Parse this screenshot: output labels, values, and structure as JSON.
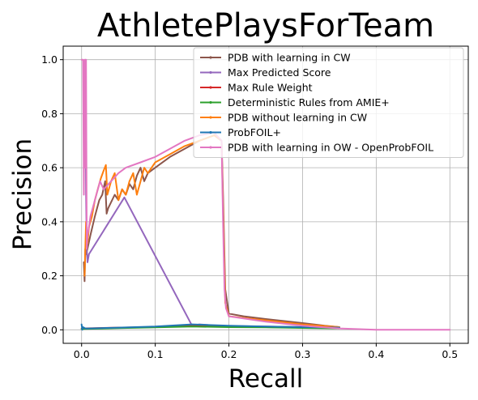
{
  "chart_data": {
    "type": "line",
    "title": "AthletePlaysForTeam",
    "xlabel": "Recall",
    "ylabel": "Precision",
    "xlim": [
      -0.025,
      0.525
    ],
    "ylim": [
      -0.05,
      1.05
    ],
    "xticks": [
      0.0,
      0.1,
      0.2,
      0.3,
      0.4,
      0.5
    ],
    "xtick_labels": [
      "0.0",
      "0.1",
      "0.2",
      "0.3",
      "0.4",
      "0.5"
    ],
    "yticks": [
      0.0,
      0.2,
      0.4,
      0.6,
      0.8,
      1.0
    ],
    "ytick_labels": [
      "0.0",
      "0.2",
      "0.4",
      "0.6",
      "0.8",
      "1.0"
    ],
    "grid": true,
    "legend_position": "top-right",
    "series": [
      {
        "name": "PDB with learning in CW",
        "color": "#8c564b",
        "x": [
          0.003,
          0.004,
          0.005,
          0.006,
          0.008,
          0.012,
          0.018,
          0.024,
          0.028,
          0.032,
          0.034,
          0.036,
          0.045,
          0.05,
          0.055,
          0.06,
          0.065,
          0.07,
          0.075,
          0.08,
          0.085,
          0.09,
          0.1,
          0.12,
          0.14,
          0.16,
          0.18,
          0.19,
          0.192,
          0.195,
          0.2,
          0.22,
          0.25,
          0.3,
          0.33,
          0.35
        ],
        "y": [
          0.25,
          0.18,
          0.3,
          0.28,
          0.3,
          0.35,
          0.42,
          0.48,
          0.5,
          0.55,
          0.43,
          0.45,
          0.5,
          0.48,
          0.52,
          0.5,
          0.54,
          0.52,
          0.57,
          0.6,
          0.55,
          0.58,
          0.6,
          0.64,
          0.67,
          0.7,
          0.72,
          0.7,
          0.5,
          0.15,
          0.06,
          0.05,
          0.04,
          0.025,
          0.015,
          0.01
        ]
      },
      {
        "name": "Max Predicted Score",
        "color": "#9467bd",
        "x": [
          0.005,
          0.006,
          0.007,
          0.008,
          0.01,
          0.058,
          0.15,
          0.16,
          0.17,
          0.18,
          0.19,
          0.2,
          0.25,
          0.3,
          0.35
        ],
        "y": [
          1.0,
          0.5,
          0.3,
          0.25,
          0.28,
          0.49,
          0.015,
          0.02,
          0.018,
          0.015,
          0.015,
          0.014,
          0.012,
          0.01,
          0.008
        ]
      },
      {
        "name": "Max Rule Weight",
        "color": "#d62728",
        "x": [
          0.0,
          0.05,
          0.1,
          0.15,
          0.2,
          0.25,
          0.3,
          0.35
        ],
        "y": [
          0.005,
          0.008,
          0.01,
          0.015,
          0.012,
          0.01,
          0.008,
          0.006
        ]
      },
      {
        "name": "Deterministic Rules from AMIE+",
        "color": "#2ca02c",
        "x": [
          0.0,
          0.05,
          0.1,
          0.15,
          0.2,
          0.25,
          0.3,
          0.35
        ],
        "y": [
          0.003,
          0.006,
          0.009,
          0.012,
          0.01,
          0.009,
          0.007,
          0.005
        ]
      },
      {
        "name": "PDB without learning in CW",
        "color": "#ff7f0e",
        "x": [
          0.004,
          0.006,
          0.008,
          0.01,
          0.014,
          0.018,
          0.022,
          0.026,
          0.03,
          0.033,
          0.035,
          0.04,
          0.045,
          0.05,
          0.055,
          0.06,
          0.065,
          0.07,
          0.075,
          0.08,
          0.085,
          0.09,
          0.1,
          0.12,
          0.14,
          0.16,
          0.18,
          0.19,
          0.192,
          0.195,
          0.2,
          0.25,
          0.3,
          0.35
        ],
        "y": [
          0.2,
          0.4,
          0.32,
          0.38,
          0.42,
          0.48,
          0.52,
          0.56,
          0.59,
          0.61,
          0.5,
          0.55,
          0.58,
          0.48,
          0.52,
          0.5,
          0.55,
          0.58,
          0.5,
          0.55,
          0.6,
          0.58,
          0.62,
          0.65,
          0.68,
          0.7,
          0.72,
          0.7,
          0.45,
          0.1,
          0.05,
          0.035,
          0.02,
          0.01
        ]
      },
      {
        "name": "ProbFOIL+",
        "color": "#1f77b4",
        "x": [
          0.0,
          0.001,
          0.002,
          0.005,
          0.01,
          0.05,
          0.1,
          0.15,
          0.2,
          0.25,
          0.3,
          0.35
        ],
        "y": [
          0.02,
          0.0,
          0.01,
          0.005,
          0.005,
          0.008,
          0.012,
          0.02,
          0.015,
          0.012,
          0.01,
          0.008
        ]
      },
      {
        "name": "PDB with learning in OW - OpenProbFOIL",
        "color": "#e377c2",
        "x": [
          0.0,
          0.002,
          0.003,
          0.004,
          0.005,
          0.006,
          0.007,
          0.008,
          0.01,
          0.012,
          0.015,
          0.02,
          0.025,
          0.03,
          0.04,
          0.05,
          0.06,
          0.08,
          0.1,
          0.12,
          0.14,
          0.16,
          0.18,
          0.19,
          0.192,
          0.194,
          0.196,
          0.2,
          0.25,
          0.3,
          0.35,
          0.4,
          0.45,
          0.5
        ],
        "y": [
          1.0,
          1.0,
          0.5,
          1.0,
          0.6,
          1.0,
          0.3,
          0.35,
          0.38,
          0.42,
          0.45,
          0.5,
          0.55,
          0.52,
          0.55,
          0.58,
          0.6,
          0.62,
          0.64,
          0.67,
          0.7,
          0.72,
          0.73,
          0.7,
          0.4,
          0.15,
          0.08,
          0.05,
          0.03,
          0.015,
          0.005,
          0.0,
          0.0,
          0.0
        ]
      }
    ]
  }
}
